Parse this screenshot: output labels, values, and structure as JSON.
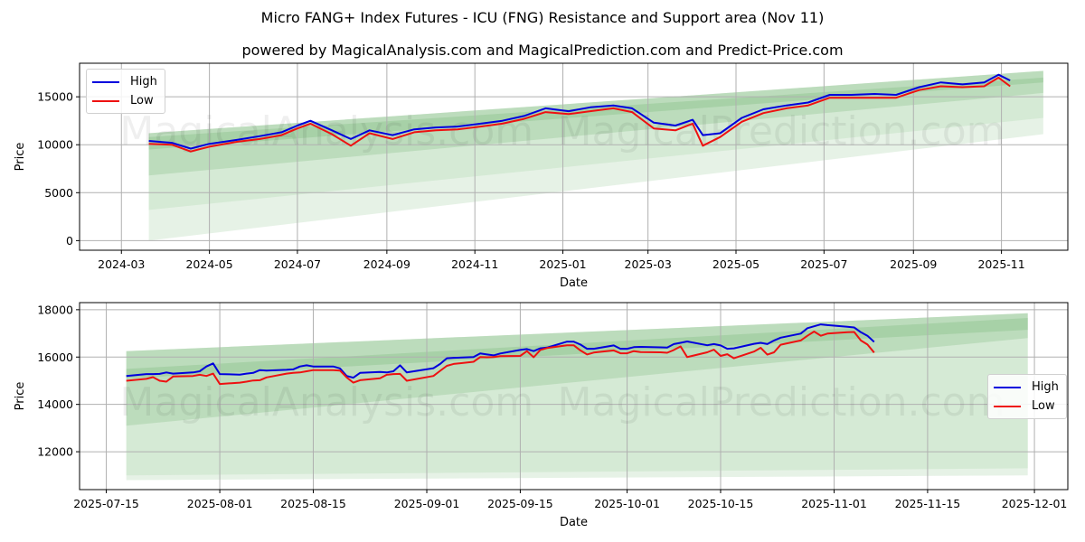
{
  "header": {
    "title": "Micro FANG+ Index Futures - ICU (FNG) Resistance and Support area (Nov 11)",
    "subtitle": "powered by MagicalAnalysis.com and MagicalPrediction.com and Predict-Price.com"
  },
  "watermarks": [
    "MagicalAnalysis.com",
    "MagicalPrediction.com"
  ],
  "colors": {
    "high": "#0000dd",
    "low": "#ee1111",
    "band_dark": "#8fc48f",
    "band_light": "#c7e3c7",
    "grid": "#b0b0b0"
  },
  "legend": {
    "high_label": "High",
    "low_label": "Low"
  },
  "chart_data": [
    {
      "type": "line",
      "title": "Micro FANG+ Index Futures - ICU (FNG) Resistance and Support area (Nov 11)",
      "xlabel": "Date",
      "ylabel": "Price",
      "ylim": [
        -1000,
        18500
      ],
      "yticks": [
        0,
        5000,
        10000,
        15000
      ],
      "xticks": [
        "2024-03",
        "2024-05",
        "2024-07",
        "2024-09",
        "2024-11",
        "2025-01",
        "2025-03",
        "2025-05",
        "2025-07",
        "2025-09",
        "2025-11"
      ],
      "legend_position": "upper left",
      "grid": true,
      "x": [
        "2024-03-20",
        "2024-04-05",
        "2024-04-18",
        "2024-05-01",
        "2024-05-20",
        "2024-06-05",
        "2024-06-20",
        "2024-07-01",
        "2024-07-10",
        "2024-07-25",
        "2024-08-07",
        "2024-08-20",
        "2024-09-05",
        "2024-09-20",
        "2024-10-05",
        "2024-10-20",
        "2024-11-05",
        "2024-11-20",
        "2024-12-05",
        "2024-12-20",
        "2025-01-05",
        "2025-01-20",
        "2025-02-05",
        "2025-02-18",
        "2025-03-05",
        "2025-03-20",
        "2025-04-01",
        "2025-04-08",
        "2025-04-20",
        "2025-05-05",
        "2025-05-20",
        "2025-06-05",
        "2025-06-20",
        "2025-07-05",
        "2025-07-20",
        "2025-08-05",
        "2025-08-20",
        "2025-09-05",
        "2025-09-20",
        "2025-10-05",
        "2025-10-20",
        "2025-10-30",
        "2025-11-07"
      ],
      "series": [
        {
          "name": "High",
          "values": [
            10400,
            10200,
            9600,
            10100,
            10500,
            10900,
            11300,
            12000,
            12500,
            11500,
            10600,
            11500,
            11000,
            11600,
            11800,
            11900,
            12200,
            12500,
            13000,
            13800,
            13500,
            13900,
            14100,
            13800,
            12300,
            12000,
            12600,
            11000,
            11200,
            12800,
            13700,
            14100,
            14400,
            15200,
            15200,
            15300,
            15200,
            16000,
            16500,
            16300,
            16500,
            17300,
            16700
          ]
        },
        {
          "name": "Low",
          "values": [
            10100,
            10000,
            9300,
            9800,
            10300,
            10600,
            11000,
            11700,
            12200,
            11100,
            9900,
            11200,
            10600,
            11300,
            11500,
            11600,
            11900,
            12200,
            12700,
            13400,
            13200,
            13500,
            13800,
            13400,
            11700,
            11500,
            12200,
            9900,
            10800,
            12400,
            13300,
            13800,
            14100,
            14900,
            14900,
            14900,
            14900,
            15700,
            16100,
            16000,
            16100,
            17000,
            16100
          ]
        }
      ],
      "bands": {
        "x_start": "2024-03-20",
        "x_end": "2025-11-30",
        "resistance_outer": [
          11200,
          17700
        ],
        "resistance_inner": [
          10800,
          17000
        ],
        "mid_upper": [
          9500,
          16500
        ],
        "mid_lower": [
          6800,
          15400
        ],
        "support_inner": [
          3200,
          12800
        ],
        "support_outer": [
          0,
          11100
        ]
      }
    },
    {
      "type": "line",
      "xlabel": "Date",
      "ylabel": "Price",
      "ylim": [
        10400,
        18300
      ],
      "yticks": [
        12000,
        14000,
        16000,
        18000
      ],
      "xticks": [
        "2025-07-15",
        "2025-08-01",
        "2025-08-15",
        "2025-09-01",
        "2025-09-15",
        "2025-10-01",
        "2025-10-15",
        "2025-11-01",
        "2025-11-15",
        "2025-12-01"
      ],
      "legend_position": "center right",
      "grid": true,
      "x": [
        "2025-07-18",
        "2025-07-21",
        "2025-07-22",
        "2025-07-23",
        "2025-07-24",
        "2025-07-25",
        "2025-07-28",
        "2025-07-29",
        "2025-07-30",
        "2025-07-31",
        "2025-08-01",
        "2025-08-04",
        "2025-08-05",
        "2025-08-06",
        "2025-08-07",
        "2025-08-08",
        "2025-08-11",
        "2025-08-12",
        "2025-08-13",
        "2025-08-14",
        "2025-08-15",
        "2025-08-18",
        "2025-08-19",
        "2025-08-20",
        "2025-08-21",
        "2025-08-22",
        "2025-08-25",
        "2025-08-26",
        "2025-08-27",
        "2025-08-28",
        "2025-08-29",
        "2025-09-02",
        "2025-09-03",
        "2025-09-04",
        "2025-09-05",
        "2025-09-08",
        "2025-09-09",
        "2025-09-10",
        "2025-09-11",
        "2025-09-12",
        "2025-09-15",
        "2025-09-16",
        "2025-09-17",
        "2025-09-18",
        "2025-09-19",
        "2025-09-22",
        "2025-09-23",
        "2025-09-24",
        "2025-09-25",
        "2025-09-26",
        "2025-09-29",
        "2025-09-30",
        "2025-10-01",
        "2025-10-02",
        "2025-10-03",
        "2025-10-06",
        "2025-10-07",
        "2025-10-08",
        "2025-10-09",
        "2025-10-10",
        "2025-10-13",
        "2025-10-14",
        "2025-10-15",
        "2025-10-16",
        "2025-10-17",
        "2025-10-20",
        "2025-10-21",
        "2025-10-22",
        "2025-10-23",
        "2025-10-24",
        "2025-10-27",
        "2025-10-28",
        "2025-10-29",
        "2025-10-30",
        "2025-10-31",
        "2025-11-03",
        "2025-11-04",
        "2025-11-05",
        "2025-11-06",
        "2025-11-07"
      ],
      "series": [
        {
          "name": "High",
          "values": [
            15200,
            15280,
            15280,
            15290,
            15350,
            15300,
            15350,
            15400,
            15600,
            15730,
            15280,
            15260,
            15300,
            15330,
            15450,
            15430,
            15460,
            15480,
            15600,
            15650,
            15600,
            15600,
            15520,
            15200,
            15130,
            15330,
            15370,
            15350,
            15400,
            15650,
            15350,
            15530,
            15710,
            15950,
            15970,
            16000,
            16150,
            16110,
            16070,
            16150,
            16300,
            16340,
            16250,
            16370,
            16400,
            16650,
            16650,
            16530,
            16350,
            16350,
            16490,
            16350,
            16350,
            16420,
            16430,
            16410,
            16400,
            16550,
            16600,
            16660,
            16500,
            16550,
            16490,
            16350,
            16370,
            16560,
            16600,
            16550,
            16700,
            16820,
            16990,
            17220,
            17300,
            17380,
            17350,
            17280,
            17250,
            17050,
            16900,
            16640
          ]
        },
        {
          "name": "Low",
          "values": [
            15000,
            15080,
            15150,
            15000,
            14960,
            15180,
            15200,
            15250,
            15200,
            15300,
            14860,
            14920,
            14960,
            15010,
            15020,
            15140,
            15300,
            15330,
            15350,
            15400,
            15450,
            15450,
            15430,
            15140,
            14920,
            15020,
            15100,
            15250,
            15280,
            15290,
            15000,
            15200,
            15420,
            15630,
            15710,
            15800,
            16000,
            15990,
            16000,
            16040,
            16050,
            16250,
            15990,
            16300,
            16380,
            16500,
            16500,
            16280,
            16110,
            16190,
            16280,
            16160,
            16160,
            16250,
            16210,
            16200,
            16180,
            16300,
            16450,
            16000,
            16200,
            16310,
            16050,
            16120,
            15950,
            16230,
            16390,
            16100,
            16200,
            16520,
            16700,
            16900,
            17080,
            16900,
            16990,
            17050,
            17060,
            16700,
            16530,
            16190
          ]
        }
      ],
      "bands": {
        "x_start": "2025-07-18",
        "x_end": "2025-11-30",
        "resistance_outer": [
          16250,
          17850
        ],
        "resistance_inner": [
          15500,
          17650
        ],
        "mid_upper": [
          15100,
          17150
        ],
        "mid_lower": [
          13100,
          16800
        ],
        "support_inner": [
          11000,
          11300
        ],
        "support_outer": [
          10800,
          11000
        ]
      }
    }
  ]
}
